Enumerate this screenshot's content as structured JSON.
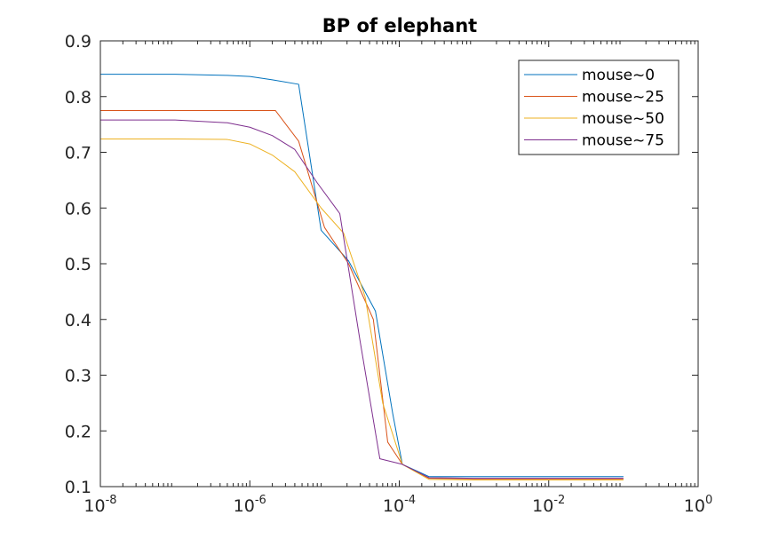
{
  "chart_data": {
    "type": "line",
    "title": "BP of elephant",
    "xlabel": "",
    "ylabel": "",
    "xscale": "log",
    "xlim": [
      1e-08,
      1
    ],
    "ylim": [
      0.1,
      0.9
    ],
    "x_ticks": [
      {
        "value": 1e-08,
        "base": "10",
        "exp": "-8"
      },
      {
        "value": 1e-06,
        "base": "10",
        "exp": "-6"
      },
      {
        "value": 0.0001,
        "base": "10",
        "exp": "-4"
      },
      {
        "value": 0.01,
        "base": "10",
        "exp": "-2"
      },
      {
        "value": 1,
        "base": "10",
        "exp": "0"
      }
    ],
    "y_ticks": [
      {
        "value": 0.1,
        "label": "0.1"
      },
      {
        "value": 0.2,
        "label": "0.2"
      },
      {
        "value": 0.3,
        "label": "0.3"
      },
      {
        "value": 0.4,
        "label": "0.4"
      },
      {
        "value": 0.5,
        "label": "0.5"
      },
      {
        "value": 0.6,
        "label": "0.6"
      },
      {
        "value": 0.7,
        "label": "0.7"
      },
      {
        "value": 0.8,
        "label": "0.8"
      },
      {
        "value": 0.9,
        "label": "0.9"
      }
    ],
    "grid": false,
    "legend_position": "top-right",
    "series": [
      {
        "name": "mouse~0",
        "color": "#0072BD",
        "x": [
          1e-08,
          1e-07,
          5e-07,
          1e-06,
          2e-06,
          4.5e-06,
          9e-06,
          2.1e-05,
          4.8e-05,
          8.2e-05,
          0.00011,
          0.00025,
          0.001,
          0.01,
          0.1
        ],
        "y": [
          0.84,
          0.84,
          0.838,
          0.836,
          0.83,
          0.822,
          0.56,
          0.505,
          0.415,
          0.23,
          0.14,
          0.118,
          0.118,
          0.118,
          0.118
        ]
      },
      {
        "name": "mouse~25",
        "color": "#D95319",
        "x": [
          1e-08,
          1e-07,
          1e-06,
          2.2e-06,
          4.5e-06,
          1e-05,
          2.1e-05,
          4.5e-05,
          7e-05,
          0.00011,
          0.00025,
          0.001,
          0.01,
          0.1
        ],
        "y": [
          0.775,
          0.775,
          0.775,
          0.775,
          0.72,
          0.565,
          0.5,
          0.4,
          0.18,
          0.14,
          0.115,
          0.114,
          0.114,
          0.114
        ]
      },
      {
        "name": "mouse~50",
        "color": "#EDB120",
        "x": [
          1e-08,
          1e-07,
          5e-07,
          1e-06,
          2e-06,
          4e-06,
          9e-06,
          1.8e-05,
          3.5e-05,
          6e-05,
          0.00011,
          0.00025,
          0.001,
          0.01,
          0.1
        ],
        "y": [
          0.724,
          0.724,
          0.723,
          0.715,
          0.695,
          0.665,
          0.6,
          0.555,
          0.44,
          0.25,
          0.14,
          0.113,
          0.112,
          0.112,
          0.112
        ]
      },
      {
        "name": "mouse~75",
        "color": "#7E2F8E",
        "x": [
          1e-08,
          1e-07,
          5e-07,
          1e-06,
          2e-06,
          4e-06,
          8e-06,
          1.6e-05,
          3e-05,
          5.5e-05,
          0.00011,
          0.00025,
          0.001,
          0.01,
          0.1
        ],
        "y": [
          0.758,
          0.758,
          0.753,
          0.745,
          0.73,
          0.705,
          0.645,
          0.59,
          0.36,
          0.15,
          0.14,
          0.116,
          0.115,
          0.115,
          0.115
        ]
      }
    ]
  }
}
